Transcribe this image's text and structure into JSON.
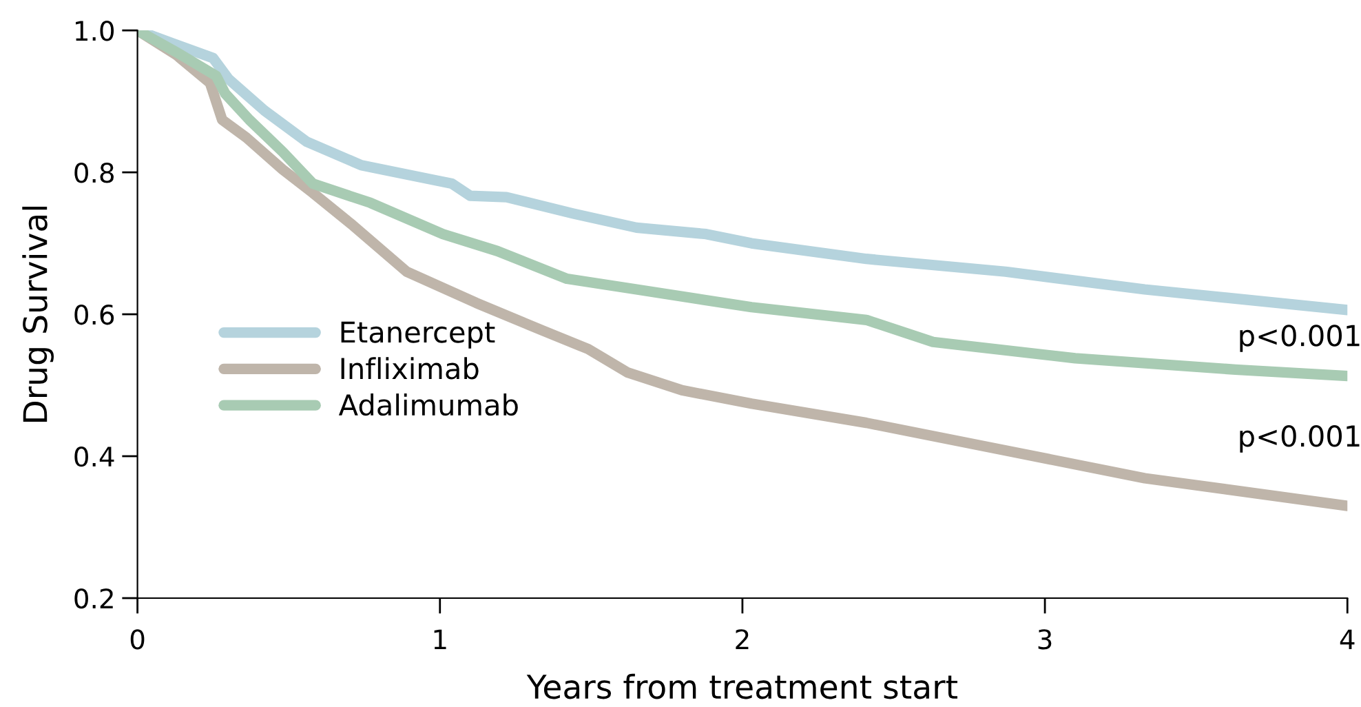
{
  "chart_data": {
    "type": "line",
    "xlabel": "Years from treatment start",
    "ylabel": "Drug Survival",
    "xlim": [
      0,
      4
    ],
    "ylim": [
      0.2,
      1.0
    ],
    "xticks": [
      0,
      1,
      2,
      3,
      4
    ],
    "yticks": [
      {
        "value": 0.2,
        "label": "0.2"
      },
      {
        "value": 0.4,
        "label": "0.4"
      },
      {
        "value": 0.6,
        "label": "0.6"
      },
      {
        "value": 0.8,
        "label": "0.8"
      },
      {
        "value": 1.0,
        "label": "1.0"
      }
    ],
    "grid": false,
    "legend": "left",
    "marker": "none",
    "line_style": "solid",
    "series": [
      {
        "name": "Etanercept",
        "color": "#b5d3dd",
        "x": [
          0,
          0.25,
          0.3,
          0.42,
          0.56,
          0.74,
          1.04,
          1.1,
          1.22,
          1.44,
          1.65,
          1.88,
          2.03,
          2.41,
          2.87,
          3.33,
          4.0
        ],
        "values": [
          1.0,
          0.961,
          0.932,
          0.887,
          0.843,
          0.81,
          0.784,
          0.767,
          0.765,
          0.742,
          0.722,
          0.713,
          0.7,
          0.678,
          0.66,
          0.635,
          0.606
        ]
      },
      {
        "name": "Infliximab",
        "color": "#bfb5aa",
        "x": [
          0,
          0.13,
          0.24,
          0.28,
          0.36,
          0.48,
          0.58,
          0.71,
          0.89,
          1.12,
          1.34,
          1.49,
          1.62,
          1.8,
          2.03,
          2.41,
          2.87,
          3.33,
          4.0
        ],
        "values": [
          1.0,
          0.965,
          0.926,
          0.874,
          0.849,
          0.804,
          0.771,
          0.726,
          0.66,
          0.616,
          0.577,
          0.551,
          0.518,
          0.493,
          0.474,
          0.447,
          0.408,
          0.369,
          0.33
        ]
      },
      {
        "name": "Adalimumab",
        "color": "#a8cbb3",
        "x": [
          0,
          0.13,
          0.26,
          0.29,
          0.37,
          0.48,
          0.58,
          0.77,
          1.01,
          1.19,
          1.42,
          1.65,
          2.03,
          2.41,
          2.63,
          3.1,
          3.63,
          4.0
        ],
        "values": [
          1.0,
          0.969,
          0.936,
          0.911,
          0.874,
          0.829,
          0.784,
          0.757,
          0.713,
          0.689,
          0.65,
          0.635,
          0.61,
          0.592,
          0.561,
          0.538,
          0.522,
          0.513
        ]
      }
    ],
    "annotations": [
      "p<0.001",
      "p<0.001"
    ]
  }
}
